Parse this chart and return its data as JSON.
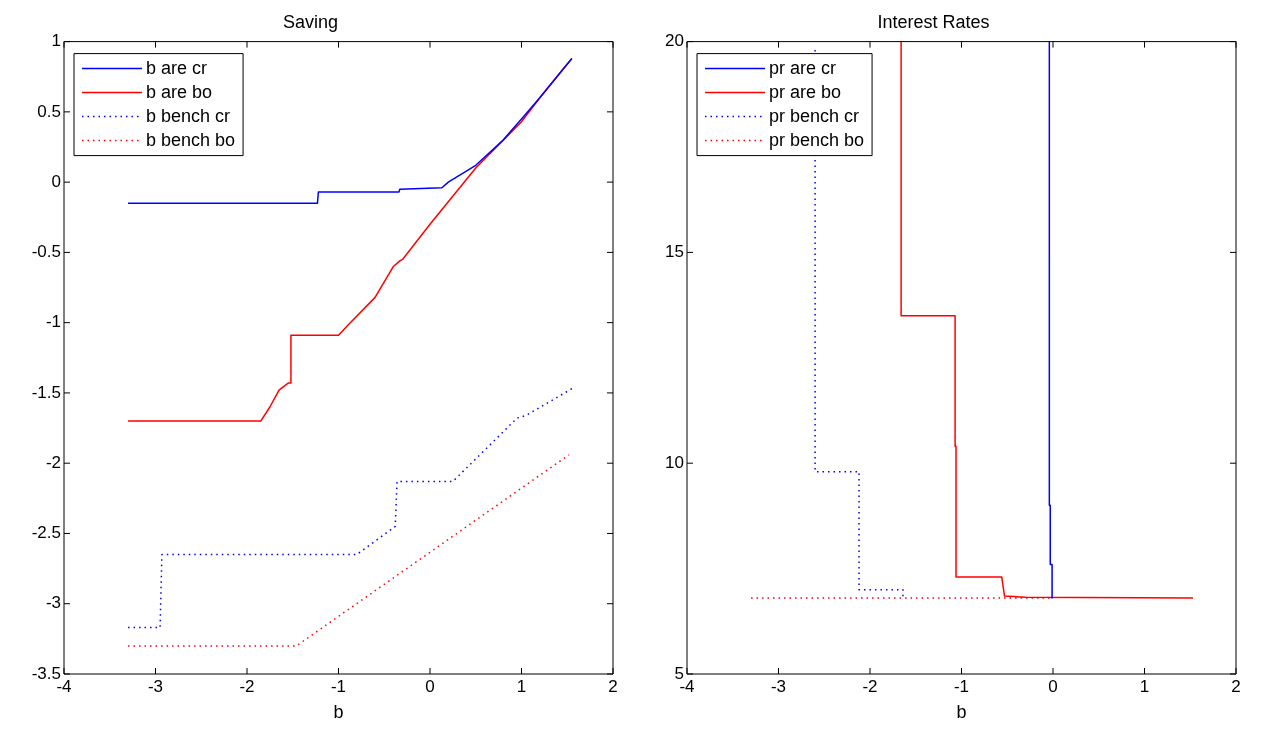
{
  "chart_data": [
    {
      "type": "line",
      "title": "Saving",
      "xlabel": "b",
      "xlim": [
        -4,
        2
      ],
      "xticks": [
        -4,
        -3,
        -2,
        -1,
        0,
        1,
        2
      ],
      "ylim": [
        -3.5,
        1
      ],
      "yticks": [
        -3.5,
        -3,
        -2.5,
        -2,
        -1.5,
        -1,
        -0.5,
        0,
        0.5,
        1
      ],
      "grid": false,
      "legend": "top left",
      "marker": "none",
      "series": [
        {
          "name": "b are cr",
          "color": "#0000ff",
          "line_style": "solid",
          "x": [
            -3.3,
            -1.23,
            -1.22,
            -0.34,
            -0.33,
            0.13,
            0.2,
            0.5,
            0.8,
            1.0,
            1.2,
            1.4,
            1.55
          ],
          "values": [
            -0.15,
            -0.15,
            -0.07,
            -0.07,
            -0.05,
            -0.04,
            0.0,
            0.12,
            0.3,
            0.45,
            0.6,
            0.76,
            0.88
          ]
        },
        {
          "name": "b are bo",
          "color": "#ff0000",
          "line_style": "solid",
          "x": [
            -3.3,
            -1.85,
            -1.75,
            -1.65,
            -1.55,
            -1.53,
            -1.52,
            -1.0,
            -0.9,
            -0.6,
            -0.4,
            -0.33,
            -0.3,
            0,
            0.5,
            1.0,
            1.2,
            1.55
          ],
          "values": [
            -1.7,
            -1.7,
            -1.6,
            -1.48,
            -1.43,
            -1.43,
            -1.09,
            -1.09,
            -1.02,
            -0.82,
            -0.6,
            -0.56,
            -0.55,
            -0.3,
            0.1,
            0.43,
            0.6,
            0.88
          ]
        },
        {
          "name": "b bench cr",
          "color": "#0000ff",
          "line_style": "dotted",
          "x": [
            -3.3,
            -2.95,
            -2.93,
            -0.8,
            -0.38,
            -0.36,
            0.25,
            0.95,
            1.05,
            1.55
          ],
          "values": [
            -3.17,
            -3.17,
            -2.65,
            -2.65,
            -2.45,
            -2.13,
            -2.13,
            -1.68,
            -1.66,
            -1.47
          ]
        },
        {
          "name": "b bench bo",
          "color": "#ff0000",
          "line_style": "dotted",
          "x": [
            -3.3,
            -1.46,
            1.52
          ],
          "values": [
            -3.3,
            -3.3,
            -1.94
          ]
        }
      ]
    },
    {
      "type": "line",
      "title": "Interest Rates",
      "xlabel": "b",
      "xlim": [
        -4,
        2
      ],
      "xticks": [
        -4,
        -3,
        -2,
        -1,
        0,
        1,
        2
      ],
      "ylim": [
        5,
        20
      ],
      "yticks": [
        5,
        10,
        15,
        20
      ],
      "grid": false,
      "legend": "top left",
      "marker": "none",
      "series": [
        {
          "name": "pr are cr",
          "color": "#0000ff",
          "line_style": "solid",
          "x": [
            -0.04,
            -0.04,
            -0.03,
            -0.03,
            -0.01,
            -0.01
          ],
          "values": [
            20,
            9,
            9,
            7.6,
            7.6,
            6.8
          ]
        },
        {
          "name": "pr are bo",
          "color": "#ff0000",
          "line_style": "solid",
          "x": [
            -1.66,
            -1.66,
            -1.07,
            -1.07,
            -1.06,
            -1.06,
            -0.56,
            -0.53,
            -0.3,
            1.53
          ],
          "values": [
            20,
            13.5,
            13.5,
            10.4,
            10.4,
            7.3,
            7.3,
            6.85,
            6.82,
            6.8
          ]
        },
        {
          "name": "pr bench cr",
          "color": "#0000ff",
          "line_style": "dotted",
          "x": [
            -2.6,
            -2.6,
            -2.12,
            -2.12,
            -1.64,
            -1.64
          ],
          "values": [
            19.8,
            9.8,
            9.8,
            7.0,
            7.0,
            6.8
          ]
        },
        {
          "name": "pr bench bo",
          "color": "#ff0000",
          "line_style": "dotted",
          "x": [
            -3.3,
            0
          ],
          "values": [
            6.8,
            6.8
          ]
        }
      ]
    }
  ]
}
